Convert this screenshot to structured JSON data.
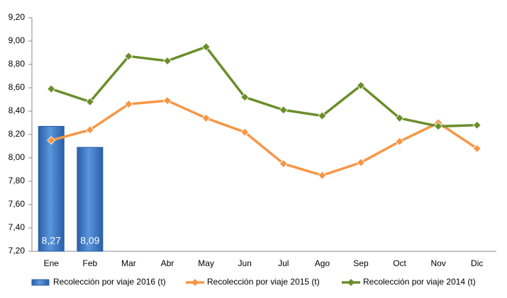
{
  "chart_data": {
    "type": "bar",
    "categories": [
      "Ene",
      "Feb",
      "Mar",
      "Abr",
      "May",
      "Jun",
      "Jul",
      "Ago",
      "Sep",
      "Oct",
      "Nov",
      "Dic"
    ],
    "series": [
      {
        "name": "Recolección por viaje 2016 (t)",
        "type": "bar",
        "color": "#3c78c3",
        "values": [
          8.27,
          8.09,
          null,
          null,
          null,
          null,
          null,
          null,
          null,
          null,
          null,
          null
        ],
        "value_labels": [
          "8,27",
          "8,09",
          null,
          null,
          null,
          null,
          null,
          null,
          null,
          null,
          null,
          null
        ]
      },
      {
        "name": "Recolección por viaje 2015 (t)",
        "type": "line",
        "color": "#f79646",
        "values": [
          8.15,
          8.24,
          8.46,
          8.49,
          8.34,
          8.22,
          7.95,
          7.85,
          7.96,
          8.14,
          8.3,
          8.08
        ]
      },
      {
        "name": "Recolección por viaje 2014 (t)",
        "type": "line",
        "color": "#6b8e2a",
        "values": [
          8.59,
          8.48,
          8.87,
          8.83,
          8.95,
          8.52,
          8.41,
          8.36,
          8.62,
          8.34,
          8.27,
          8.28
        ]
      }
    ],
    "ylim": [
      7.2,
      9.2
    ],
    "yticks": [
      {
        "value": 7.2,
        "label": "7,20"
      },
      {
        "value": 7.4,
        "label": "7,40"
      },
      {
        "value": 7.6,
        "label": "7,60"
      },
      {
        "value": 7.8,
        "label": "7,80"
      },
      {
        "value": 8.0,
        "label": "8,00"
      },
      {
        "value": 8.2,
        "label": "8,20"
      },
      {
        "value": 8.4,
        "label": "8,40"
      },
      {
        "value": 8.6,
        "label": "8,60"
      },
      {
        "value": 8.8,
        "label": "8,80"
      },
      {
        "value": 9.0,
        "label": "9,00"
      },
      {
        "value": 9.2,
        "label": "9,20"
      }
    ],
    "grid": false,
    "legend": "bottom"
  }
}
